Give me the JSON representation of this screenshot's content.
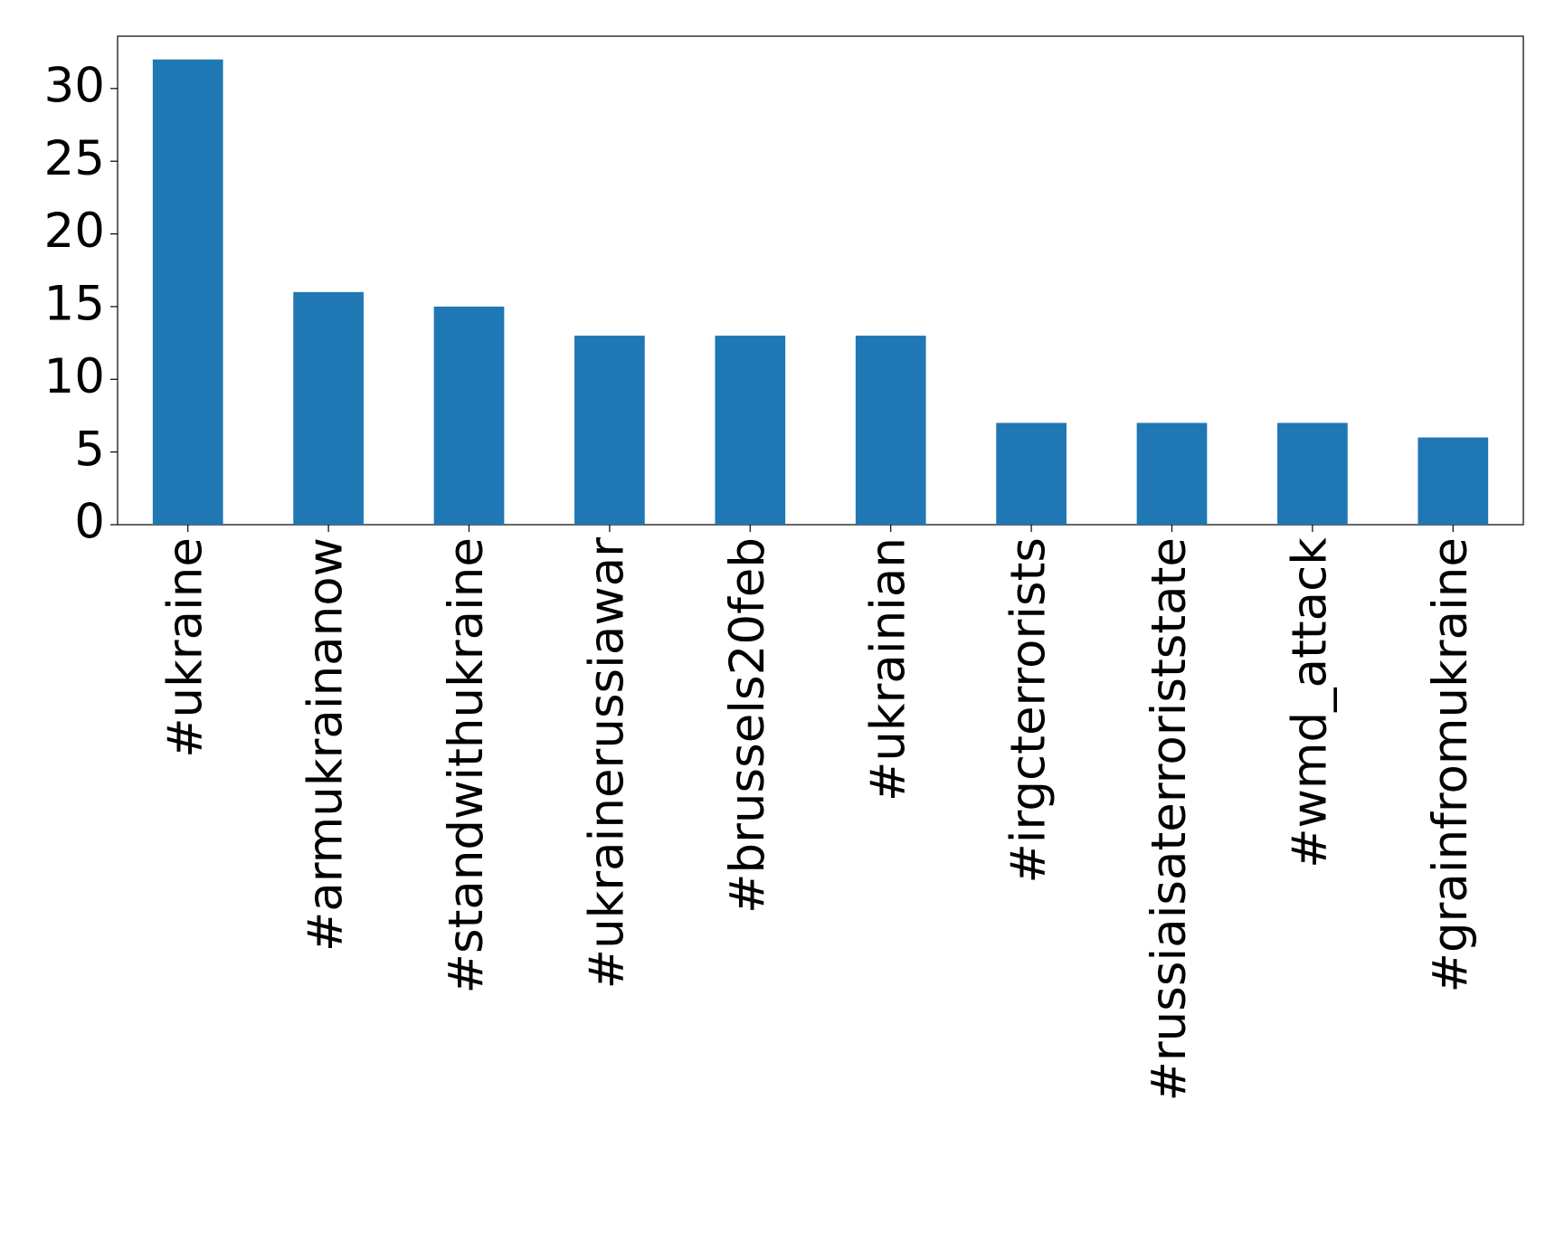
{
  "chart_data": {
    "type": "bar",
    "categories": [
      "#ukraine",
      "#armukrainanow",
      "#standwithukraine",
      "#ukrainerussiawar",
      "#brussels20feb",
      "#ukrainian",
      "#irgcterrorists",
      "#russiaisaterroriststate",
      "#wmd_attack",
      "#grainfromukraine"
    ],
    "values": [
      32,
      16,
      15,
      13,
      13,
      13,
      7,
      7,
      7,
      6
    ],
    "color": "#1f77b4",
    "ylim": [
      0,
      33.6
    ],
    "yticks": [
      0,
      5,
      10,
      15,
      20,
      25,
      30
    ],
    "grid": false
  }
}
